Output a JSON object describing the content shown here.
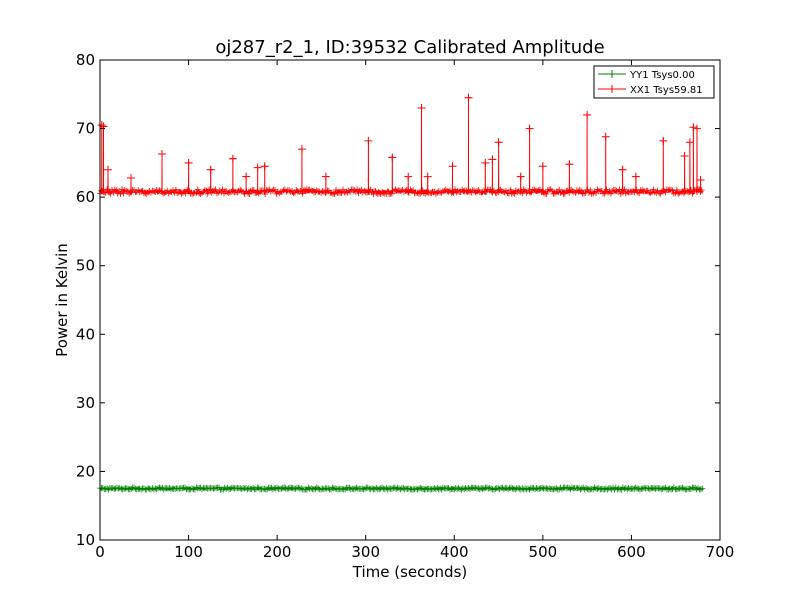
{
  "chart_data": {
    "type": "line",
    "title": "oj287_r2_1, ID:39532 Calibrated Amplitude",
    "xlabel": "Time (seconds)",
    "ylabel": "Power in Kelvin",
    "xlim": [
      0,
      700
    ],
    "ylim": [
      10,
      80
    ],
    "xticks": [
      0,
      100,
      200,
      300,
      400,
      500,
      600,
      700
    ],
    "yticks": [
      10,
      20,
      30,
      40,
      50,
      60,
      70,
      80
    ],
    "grid": false,
    "legend_position": "top-right",
    "series": [
      {
        "name": "YY1 Tsys0.00",
        "color": "#008000",
        "marker": "+",
        "baseline": 17.5,
        "noise": 0.15,
        "x_start": 0,
        "x_end": 680,
        "spikes": []
      },
      {
        "name": "XX1 Tsys59.81",
        "color": "#ff0000",
        "marker": "+",
        "baseline": 60.8,
        "noise": 0.35,
        "x_start": 0,
        "x_end": 680,
        "spikes": [
          [
            2,
            70.5
          ],
          [
            4,
            70.3
          ],
          [
            9,
            64.0
          ],
          [
            35,
            62.8
          ],
          [
            70,
            66.3
          ],
          [
            100,
            65.0
          ],
          [
            125,
            64.0
          ],
          [
            150,
            65.6
          ],
          [
            165,
            63.0
          ],
          [
            178,
            64.3
          ],
          [
            186,
            64.5
          ],
          [
            228,
            67.0
          ],
          [
            255,
            63.0
          ],
          [
            303,
            68.2
          ],
          [
            330,
            65.8
          ],
          [
            348,
            63.0
          ],
          [
            363,
            73.0
          ],
          [
            370,
            63.0
          ],
          [
            398,
            64.5
          ],
          [
            416,
            74.5
          ],
          [
            435,
            65.0
          ],
          [
            443,
            65.5
          ],
          [
            450,
            68.0
          ],
          [
            475,
            63.0
          ],
          [
            485,
            70.0
          ],
          [
            500,
            64.5
          ],
          [
            530,
            64.8
          ],
          [
            550,
            72.0
          ],
          [
            571,
            68.8
          ],
          [
            590,
            64.0
          ],
          [
            605,
            63.0
          ],
          [
            636,
            68.2
          ],
          [
            660,
            66.0
          ],
          [
            666,
            68.0
          ],
          [
            670,
            70.2
          ],
          [
            674,
            70.0
          ],
          [
            678,
            62.5
          ]
        ]
      }
    ]
  }
}
